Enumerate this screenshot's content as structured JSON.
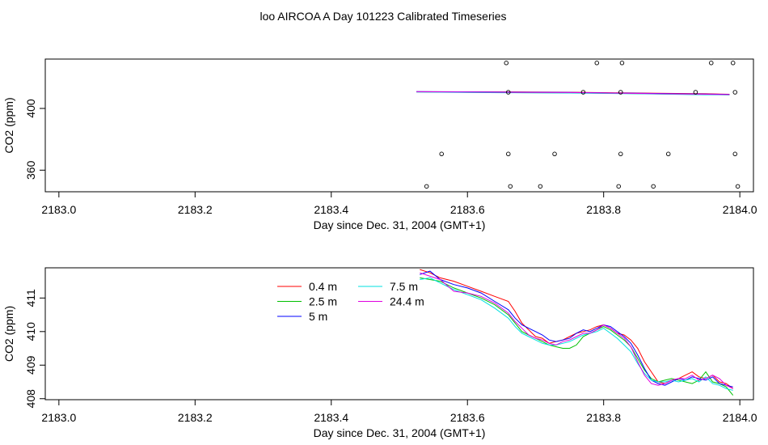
{
  "figure": {
    "title": "loo AIRCOA A  Day 101223  Calibrated Timeseries"
  },
  "chart_data": [
    {
      "type": "scatter",
      "title": "",
      "xlabel": "Day since Dec. 31, 2004 (GMT+1)",
      "ylabel": "CO2 (ppm)",
      "xlim": [
        2182.98,
        2184.02
      ],
      "ylim": [
        346,
        432
      ],
      "xticks": [
        "2183.0",
        "2183.2",
        "2183.4",
        "2183.6",
        "2183.8",
        "2184.0"
      ],
      "yticks": [
        "360",
        "400"
      ],
      "grid": false,
      "colors": [
        "#ff0000",
        "#00c000",
        "#0000ff",
        "#00e0e0",
        "#e000e0"
      ],
      "series": [
        {
          "values": [
            [
              2183.525,
              410.8
            ],
            [
              2183.65,
              410.7
            ],
            [
              2183.75,
              410.5
            ],
            [
              2183.85,
              410.0
            ],
            [
              2183.95,
              409.5
            ],
            [
              2183.985,
              409.2
            ]
          ]
        },
        {
          "values": [
            [
              2183.525,
              410.7
            ],
            [
              2183.65,
              410.3
            ],
            [
              2183.75,
              410.1
            ],
            [
              2183.85,
              409.6
            ],
            [
              2183.95,
              409.0
            ],
            [
              2183.985,
              408.9
            ]
          ]
        },
        {
          "values": [
            [
              2183.525,
              410.9
            ],
            [
              2183.65,
              410.6
            ],
            [
              2183.75,
              410.4
            ],
            [
              2183.85,
              409.8
            ],
            [
              2183.95,
              409.3
            ],
            [
              2183.985,
              409.1
            ]
          ]
        },
        {
          "values": [
            [
              2183.525,
              410.6
            ],
            [
              2183.65,
              410.2
            ],
            [
              2183.75,
              410.0
            ],
            [
              2183.85,
              409.5
            ],
            [
              2183.95,
              408.9
            ],
            [
              2183.985,
              408.8
            ]
          ]
        },
        {
          "values": [
            [
              2183.525,
              410.8
            ],
            [
              2183.65,
              410.5
            ],
            [
              2183.75,
              410.3
            ],
            [
              2183.85,
              409.7
            ],
            [
              2183.95,
              409.2
            ],
            [
              2183.985,
              409.0
            ]
          ]
        }
      ],
      "markers": [
        [
          2183.657,
          429.5
        ],
        [
          2183.79,
          429.5
        ],
        [
          2183.827,
          429.5
        ],
        [
          2183.958,
          429.5
        ],
        [
          2183.99,
          429.5
        ],
        [
          2183.66,
          410.5
        ],
        [
          2183.77,
          410.5
        ],
        [
          2183.825,
          410.5
        ],
        [
          2183.935,
          410.5
        ],
        [
          2183.993,
          410.5
        ],
        [
          2183.562,
          370.5
        ],
        [
          2183.66,
          370.5
        ],
        [
          2183.728,
          370.5
        ],
        [
          2183.825,
          370.5
        ],
        [
          2183.895,
          370.5
        ],
        [
          2183.993,
          370.5
        ],
        [
          2183.54,
          349.5
        ],
        [
          2183.663,
          349.5
        ],
        [
          2183.707,
          349.5
        ],
        [
          2183.822,
          349.5
        ],
        [
          2183.873,
          349.5
        ],
        [
          2183.997,
          349.5
        ]
      ]
    },
    {
      "type": "line",
      "title": "",
      "xlabel": "Day since Dec. 31, 2004 (GMT+1)",
      "ylabel": "CO2 (ppm)",
      "xlim": [
        2182.98,
        2184.02
      ],
      "ylim": [
        407.97,
        411.9
      ],
      "xticks": [
        "2183.0",
        "2183.2",
        "2183.4",
        "2183.6",
        "2183.8",
        "2184.0"
      ],
      "yticks": [
        "408",
        "409",
        "410",
        "411"
      ],
      "grid": false,
      "legend_position": "top-center",
      "series": [
        {
          "name": "0.4 m",
          "color": "#ff0000",
          "x": [
            2183.53,
            2183.545,
            2183.56,
            2183.58,
            2183.6,
            2183.62,
            2183.64,
            2183.66,
            2183.67,
            2183.68,
            2183.69,
            2183.7,
            2183.71,
            2183.72,
            2183.73,
            2183.74,
            2183.75,
            2183.76,
            2183.77,
            2183.78,
            2183.79,
            2183.8,
            2183.81,
            2183.82,
            2183.83,
            2183.84,
            2183.85,
            2183.86,
            2183.87,
            2183.88,
            2183.89,
            2183.9,
            2183.91,
            2183.92,
            2183.93,
            2183.94,
            2183.95,
            2183.96,
            2183.97,
            2183.98,
            2183.99
          ],
          "y": [
            411.85,
            411.75,
            411.6,
            411.5,
            411.35,
            411.2,
            411.05,
            410.9,
            410.6,
            410.25,
            410.05,
            409.85,
            409.8,
            409.65,
            409.7,
            409.75,
            409.85,
            409.95,
            410.0,
            410.05,
            410.15,
            410.2,
            410.1,
            409.95,
            409.9,
            409.75,
            409.5,
            409.1,
            408.8,
            408.5,
            408.45,
            408.55,
            408.6,
            408.7,
            408.8,
            408.65,
            408.6,
            408.7,
            408.5,
            408.45,
            408.3
          ]
        },
        {
          "name": "2.5 m",
          "color": "#00c000",
          "x": [
            2183.53,
            2183.545,
            2183.56,
            2183.58,
            2183.6,
            2183.62,
            2183.64,
            2183.66,
            2183.67,
            2183.68,
            2183.69,
            2183.7,
            2183.71,
            2183.72,
            2183.73,
            2183.74,
            2183.75,
            2183.76,
            2183.77,
            2183.78,
            2183.79,
            2183.8,
            2183.81,
            2183.82,
            2183.83,
            2183.84,
            2183.85,
            2183.86,
            2183.87,
            2183.88,
            2183.89,
            2183.9,
            2183.91,
            2183.92,
            2183.93,
            2183.94,
            2183.95,
            2183.96,
            2183.97,
            2183.98,
            2183.99
          ],
          "y": [
            411.6,
            411.55,
            411.5,
            411.3,
            411.15,
            411.0,
            410.8,
            410.5,
            410.25,
            410.0,
            409.9,
            409.8,
            409.7,
            409.6,
            409.55,
            409.5,
            409.5,
            409.6,
            409.85,
            409.95,
            410.05,
            410.15,
            410.05,
            409.9,
            409.75,
            409.55,
            409.2,
            408.85,
            408.6,
            408.5,
            408.55,
            408.6,
            408.55,
            408.5,
            408.45,
            408.55,
            408.8,
            408.5,
            408.45,
            408.35,
            408.1
          ]
        },
        {
          "name": "5 m",
          "color": "#0000ff",
          "x": [
            2183.53,
            2183.545,
            2183.56,
            2183.58,
            2183.6,
            2183.62,
            2183.64,
            2183.66,
            2183.67,
            2183.68,
            2183.69,
            2183.7,
            2183.71,
            2183.72,
            2183.73,
            2183.74,
            2183.75,
            2183.76,
            2183.77,
            2183.78,
            2183.79,
            2183.8,
            2183.81,
            2183.82,
            2183.83,
            2183.84,
            2183.85,
            2183.86,
            2183.87,
            2183.88,
            2183.89,
            2183.9,
            2183.91,
            2183.92,
            2183.93,
            2183.94,
            2183.95,
            2183.96,
            2183.97,
            2183.98,
            2183.99
          ],
          "y": [
            411.7,
            411.8,
            411.55,
            411.4,
            411.3,
            411.15,
            410.9,
            410.65,
            410.4,
            410.2,
            410.1,
            410.0,
            409.9,
            409.75,
            409.7,
            409.75,
            409.8,
            409.95,
            410.05,
            410.0,
            410.1,
            410.2,
            410.15,
            410.0,
            409.85,
            409.65,
            409.3,
            408.9,
            408.55,
            408.45,
            408.4,
            408.5,
            408.6,
            408.55,
            408.65,
            408.6,
            408.55,
            408.65,
            408.45,
            408.4,
            408.35
          ]
        },
        {
          "name": "7.5 m",
          "color": "#00e0e0",
          "x": [
            2183.53,
            2183.545,
            2183.56,
            2183.58,
            2183.6,
            2183.62,
            2183.64,
            2183.66,
            2183.67,
            2183.68,
            2183.69,
            2183.7,
            2183.71,
            2183.72,
            2183.73,
            2183.74,
            2183.75,
            2183.76,
            2183.77,
            2183.78,
            2183.79,
            2183.8,
            2183.81,
            2183.82,
            2183.83,
            2183.84,
            2183.85,
            2183.86,
            2183.87,
            2183.88,
            2183.89,
            2183.9,
            2183.91,
            2183.92,
            2183.93,
            2183.94,
            2183.95,
            2183.96,
            2183.97,
            2183.98,
            2183.99
          ],
          "y": [
            411.55,
            411.6,
            411.45,
            411.25,
            411.1,
            410.95,
            410.7,
            410.4,
            410.15,
            409.95,
            409.85,
            409.75,
            409.65,
            409.6,
            409.6,
            409.65,
            409.7,
            409.8,
            409.9,
            409.95,
            410.0,
            410.1,
            409.95,
            409.8,
            409.6,
            409.4,
            409.05,
            408.75,
            408.55,
            408.5,
            408.5,
            408.55,
            408.5,
            408.55,
            408.6,
            408.5,
            408.65,
            408.45,
            408.4,
            408.3,
            408.25
          ]
        },
        {
          "name": "24.4 m",
          "color": "#e000e0",
          "x": [
            2183.53,
            2183.545,
            2183.56,
            2183.58,
            2183.6,
            2183.62,
            2183.64,
            2183.66,
            2183.67,
            2183.68,
            2183.69,
            2183.7,
            2183.71,
            2183.72,
            2183.73,
            2183.74,
            2183.75,
            2183.76,
            2183.77,
            2183.78,
            2183.79,
            2183.8,
            2183.81,
            2183.82,
            2183.83,
            2183.84,
            2183.85,
            2183.86,
            2183.87,
            2183.88,
            2183.89,
            2183.9,
            2183.91,
            2183.92,
            2183.93,
            2183.94,
            2183.95,
            2183.96,
            2183.97,
            2183.98,
            2183.99
          ],
          "y": [
            411.75,
            411.65,
            411.55,
            411.2,
            411.15,
            411.05,
            410.85,
            410.55,
            410.3,
            410.1,
            409.9,
            409.8,
            409.75,
            409.65,
            409.6,
            409.7,
            409.75,
            409.85,
            409.95,
            409.95,
            410.05,
            410.2,
            410.1,
            409.95,
            409.8,
            409.55,
            409.1,
            408.7,
            408.45,
            408.4,
            408.45,
            408.55,
            408.6,
            408.6,
            408.7,
            408.55,
            408.6,
            408.7,
            408.6,
            408.4,
            408.3
          ]
        }
      ]
    }
  ]
}
